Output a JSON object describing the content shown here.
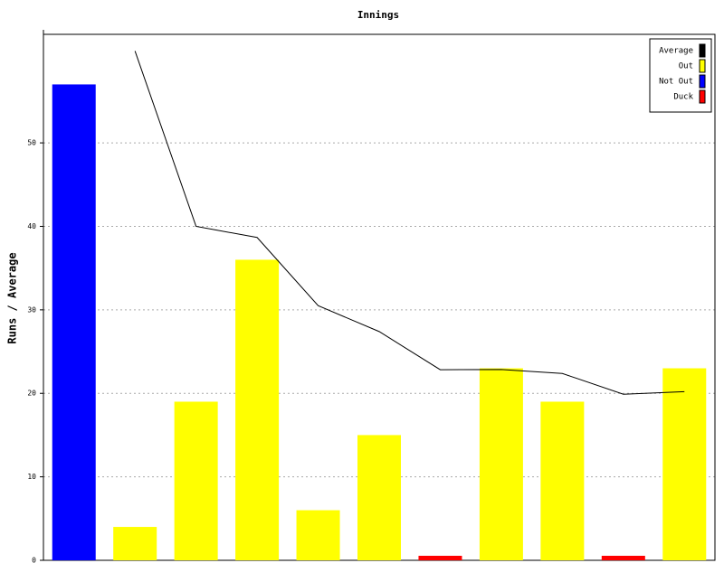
{
  "chart_data": {
    "type": "bar",
    "title": "Innings",
    "y_label": "Runs / Average",
    "categories": [
      null,
      null,
      null,
      null,
      null,
      null,
      null,
      null,
      null,
      null,
      null
    ],
    "series": [
      {
        "name": "Average",
        "type": "line",
        "color": "#000000",
        "values": [
          null,
          61,
          40,
          38.67,
          30.5,
          27.4,
          22.83,
          22.86,
          22.38,
          19.89,
          20.2
        ]
      },
      {
        "name": "Out",
        "color": "#ffff00",
        "values": [
          null,
          4,
          19,
          36,
          6,
          15,
          null,
          23,
          19,
          null,
          23
        ]
      },
      {
        "name": "Not Out",
        "color": "#0000ff",
        "values": [
          57,
          null,
          null,
          null,
          null,
          null,
          null,
          null,
          null,
          null,
          null
        ]
      },
      {
        "name": "Duck",
        "color": "#ff0000",
        "values": [
          null,
          null,
          null,
          null,
          null,
          null,
          0,
          null,
          null,
          0,
          null
        ]
      }
    ],
    "ylim": [
      0,
      63
    ],
    "yticks": [
      0,
      10,
      20,
      30,
      40,
      50
    ],
    "grid": true,
    "legend": "top-right"
  }
}
